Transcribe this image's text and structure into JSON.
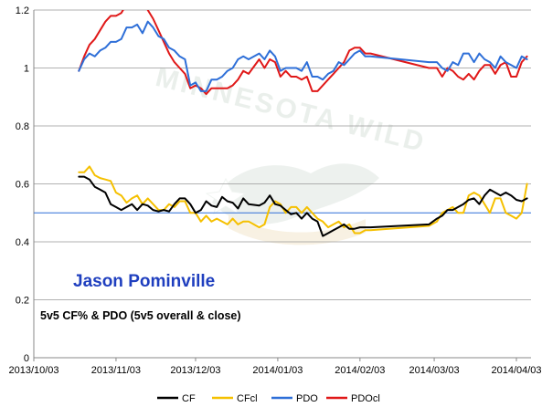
{
  "chart_data": {
    "type": "line",
    "title": "Jason Pominville",
    "subtitle": "5v5 CF% & PDO (5v5 overall & close)",
    "watermark": "MINNESOTA WILD",
    "xlabel": "",
    "ylabel": "",
    "ylim": [
      0,
      1.2
    ],
    "yticks": [
      "0",
      "0.2",
      "0.4",
      "0.6",
      "0.8",
      "1",
      "1.2"
    ],
    "xlim": [
      "2013-10-03",
      "2014-04-03"
    ],
    "xticks": [
      "2013/10/03",
      "2013/11/03",
      "2013/12/03",
      "2014/01/03",
      "2014/02/03",
      "2014/03/03",
      "2014/04/03"
    ],
    "grid": "horizontal",
    "legend_position": "bottom",
    "reference_line": {
      "y": 0.5,
      "color": "#2e6fd8"
    },
    "series": [
      {
        "name": "CF",
        "color": "#000000",
        "x": [
          "2013-10-20",
          "2013-10-22",
          "2013-10-24",
          "2013-10-26",
          "2013-10-28",
          "2013-10-30",
          "2013-11-01",
          "2013-11-03",
          "2013-11-05",
          "2013-11-07",
          "2013-11-09",
          "2013-11-11",
          "2013-11-13",
          "2013-11-15",
          "2013-11-17",
          "2013-11-19",
          "2013-11-21",
          "2013-11-23",
          "2013-11-25",
          "2013-11-27",
          "2013-11-29",
          "2013-12-01",
          "2013-12-03",
          "2013-12-05",
          "2013-12-07",
          "2013-12-09",
          "2013-12-11",
          "2013-12-13",
          "2013-12-15",
          "2013-12-17",
          "2013-12-19",
          "2013-12-21",
          "2013-12-23",
          "2013-12-27",
          "2013-12-29",
          "2013-12-31",
          "2014-01-02",
          "2014-01-04",
          "2014-01-06",
          "2014-01-08",
          "2014-01-10",
          "2014-01-12",
          "2014-01-14",
          "2014-01-16",
          "2014-01-18",
          "2014-01-20",
          "2014-01-22",
          "2014-01-24",
          "2014-01-26",
          "2014-01-28",
          "2014-01-30",
          "2014-02-01",
          "2014-02-03",
          "2014-02-05",
          "2014-02-07",
          "2014-03-01",
          "2014-03-04",
          "2014-03-06",
          "2014-03-08",
          "2014-03-10",
          "2014-03-12",
          "2014-03-14",
          "2014-03-16",
          "2014-03-18",
          "2014-03-20",
          "2014-03-22",
          "2014-03-24",
          "2014-03-26",
          "2014-03-28",
          "2014-03-30",
          "2014-04-01",
          "2014-04-03",
          "2014-04-05",
          "2014-04-07"
        ],
        "values": [
          0.625,
          0.625,
          0.615,
          0.59,
          0.58,
          0.57,
          0.53,
          0.52,
          0.51,
          0.52,
          0.53,
          0.51,
          0.53,
          0.525,
          0.51,
          0.505,
          0.51,
          0.505,
          0.53,
          0.55,
          0.55,
          0.53,
          0.5,
          0.51,
          0.54,
          0.525,
          0.52,
          0.555,
          0.54,
          0.535,
          0.515,
          0.55,
          0.53,
          0.525,
          0.535,
          0.56,
          0.53,
          0.525,
          0.51,
          0.495,
          0.5,
          0.48,
          0.5,
          0.48,
          0.47,
          0.42,
          0.43,
          0.44,
          0.45,
          0.46,
          0.445,
          0.445,
          0.45,
          0.45,
          0.45,
          0.46,
          0.48,
          0.49,
          0.51,
          0.51,
          0.52,
          0.53,
          0.545,
          0.55,
          0.53,
          0.56,
          0.58,
          0.57,
          0.56,
          0.57,
          0.56,
          0.545,
          0.54,
          0.55
        ]
      },
      {
        "name": "CFcl",
        "color": "#f5c000",
        "x": [
          "2013-10-20",
          "2013-10-22",
          "2013-10-24",
          "2013-10-26",
          "2013-10-28",
          "2013-10-30",
          "2013-11-01",
          "2013-11-03",
          "2013-11-05",
          "2013-11-07",
          "2013-11-09",
          "2013-11-11",
          "2013-11-13",
          "2013-11-15",
          "2013-11-17",
          "2013-11-19",
          "2013-11-21",
          "2013-11-23",
          "2013-11-25",
          "2013-11-27",
          "2013-11-29",
          "2013-12-01",
          "2013-12-03",
          "2013-12-05",
          "2013-12-07",
          "2013-12-09",
          "2013-12-11",
          "2013-12-13",
          "2013-12-15",
          "2013-12-17",
          "2013-12-19",
          "2013-12-21",
          "2013-12-23",
          "2013-12-27",
          "2013-12-29",
          "2013-12-31",
          "2014-01-02",
          "2014-01-04",
          "2014-01-06",
          "2014-01-08",
          "2014-01-10",
          "2014-01-12",
          "2014-01-14",
          "2014-01-16",
          "2014-01-18",
          "2014-01-20",
          "2014-01-22",
          "2014-01-24",
          "2014-01-26",
          "2014-01-28",
          "2014-01-30",
          "2014-02-01",
          "2014-02-03",
          "2014-02-05",
          "2014-02-07",
          "2014-03-01",
          "2014-03-04",
          "2014-03-06",
          "2014-03-08",
          "2014-03-10",
          "2014-03-12",
          "2014-03-14",
          "2014-03-16",
          "2014-03-18",
          "2014-03-20",
          "2014-03-22",
          "2014-03-24",
          "2014-03-26",
          "2014-03-28",
          "2014-03-30",
          "2014-04-01",
          "2014-04-03",
          "2014-04-05",
          "2014-04-07"
        ],
        "values": [
          0.64,
          0.64,
          0.66,
          0.63,
          0.62,
          0.615,
          0.61,
          0.57,
          0.56,
          0.535,
          0.55,
          0.56,
          0.53,
          0.55,
          0.53,
          0.51,
          0.51,
          0.53,
          0.52,
          0.54,
          0.54,
          0.5,
          0.5,
          0.47,
          0.49,
          0.47,
          0.48,
          0.47,
          0.46,
          0.48,
          0.46,
          0.47,
          0.47,
          0.45,
          0.46,
          0.52,
          0.54,
          0.53,
          0.5,
          0.52,
          0.52,
          0.5,
          0.52,
          0.5,
          0.48,
          0.47,
          0.45,
          0.46,
          0.47,
          0.45,
          0.46,
          0.43,
          0.43,
          0.44,
          0.44,
          0.455,
          0.47,
          0.5,
          0.51,
          0.52,
          0.5,
          0.5,
          0.56,
          0.57,
          0.56,
          0.53,
          0.5,
          0.55,
          0.55,
          0.5,
          0.49,
          0.48,
          0.5,
          0.6
        ]
      },
      {
        "name": "PDO",
        "color": "#2e6fd8",
        "x": [
          "2013-10-20",
          "2013-10-22",
          "2013-10-24",
          "2013-10-26",
          "2013-10-28",
          "2013-10-30",
          "2013-11-01",
          "2013-11-03",
          "2013-11-05",
          "2013-11-07",
          "2013-11-09",
          "2013-11-11",
          "2013-11-13",
          "2013-11-15",
          "2013-11-17",
          "2013-11-19",
          "2013-11-21",
          "2013-11-23",
          "2013-11-25",
          "2013-11-27",
          "2013-11-29",
          "2013-12-01",
          "2013-12-03",
          "2013-12-05",
          "2013-12-07",
          "2013-12-09",
          "2013-12-11",
          "2013-12-13",
          "2013-12-15",
          "2013-12-17",
          "2013-12-19",
          "2013-12-21",
          "2013-12-23",
          "2013-12-27",
          "2013-12-29",
          "2013-12-31",
          "2014-01-02",
          "2014-01-04",
          "2014-01-06",
          "2014-01-08",
          "2014-01-10",
          "2014-01-12",
          "2014-01-14",
          "2014-01-16",
          "2014-01-18",
          "2014-01-20",
          "2014-01-22",
          "2014-01-24",
          "2014-01-26",
          "2014-01-28",
          "2014-01-30",
          "2014-02-01",
          "2014-02-03",
          "2014-02-05",
          "2014-02-07",
          "2014-03-01",
          "2014-03-04",
          "2014-03-06",
          "2014-03-08",
          "2014-03-10",
          "2014-03-12",
          "2014-03-14",
          "2014-03-16",
          "2014-03-18",
          "2014-03-20",
          "2014-03-22",
          "2014-03-24",
          "2014-03-26",
          "2014-03-28",
          "2014-03-30",
          "2014-04-01",
          "2014-04-03",
          "2014-04-05",
          "2014-04-07"
        ],
        "values": [
          0.99,
          1.03,
          1.05,
          1.04,
          1.06,
          1.07,
          1.09,
          1.09,
          1.1,
          1.14,
          1.14,
          1.15,
          1.12,
          1.16,
          1.14,
          1.11,
          1.1,
          1.07,
          1.06,
          1.04,
          1.03,
          0.94,
          0.95,
          0.92,
          0.92,
          0.96,
          0.96,
          0.97,
          0.99,
          1.0,
          1.03,
          1.04,
          1.03,
          1.05,
          1.03,
          1.06,
          1.04,
          0.99,
          1.0,
          1.0,
          1.0,
          0.99,
          1.02,
          0.97,
          0.97,
          0.96,
          0.98,
          0.99,
          1.02,
          1.01,
          1.03,
          1.05,
          1.06,
          1.04,
          1.04,
          1.02,
          1.02,
          1.0,
          0.99,
          1.02,
          1.01,
          1.05,
          1.05,
          1.02,
          1.05,
          1.03,
          1.02,
          1.0,
          1.04,
          1.02,
          1.01,
          1.0,
          1.04,
          1.03
        ]
      },
      {
        "name": "PDOcl",
        "color": "#e01818",
        "x": [
          "2013-10-20",
          "2013-10-22",
          "2013-10-24",
          "2013-10-26",
          "2013-10-28",
          "2013-10-30",
          "2013-11-01",
          "2013-11-03",
          "2013-11-05",
          "2013-11-07",
          "2013-11-09",
          "2013-11-11",
          "2013-11-13",
          "2013-11-15",
          "2013-11-17",
          "2013-11-19",
          "2013-11-21",
          "2013-11-23",
          "2013-11-25",
          "2013-11-27",
          "2013-11-29",
          "2013-12-01",
          "2013-12-03",
          "2013-12-05",
          "2013-12-07",
          "2013-12-09",
          "2013-12-11",
          "2013-12-13",
          "2013-12-15",
          "2013-12-17",
          "2013-12-19",
          "2013-12-21",
          "2013-12-23",
          "2013-12-27",
          "2013-12-29",
          "2013-12-31",
          "2014-01-02",
          "2014-01-04",
          "2014-01-06",
          "2014-01-08",
          "2014-01-10",
          "2014-01-12",
          "2014-01-14",
          "2014-01-16",
          "2014-01-18",
          "2014-01-20",
          "2014-01-22",
          "2014-01-24",
          "2014-01-26",
          "2014-01-28",
          "2014-01-30",
          "2014-02-01",
          "2014-02-03",
          "2014-02-05",
          "2014-02-07",
          "2014-03-01",
          "2014-03-04",
          "2014-03-06",
          "2014-03-08",
          "2014-03-10",
          "2014-03-12",
          "2014-03-14",
          "2014-03-16",
          "2014-03-18",
          "2014-03-20",
          "2014-03-22",
          "2014-03-24",
          "2014-03-26",
          "2014-03-28",
          "2014-03-30",
          "2014-04-01",
          "2014-04-03",
          "2014-04-05",
          "2014-04-07"
        ],
        "values": [
          0.99,
          1.04,
          1.08,
          1.1,
          1.13,
          1.16,
          1.18,
          1.18,
          1.19,
          1.22,
          1.25,
          1.28,
          1.24,
          1.2,
          1.17,
          1.13,
          1.09,
          1.05,
          1.02,
          1.0,
          0.98,
          0.93,
          0.94,
          0.93,
          0.91,
          0.93,
          0.93,
          0.93,
          0.93,
          0.94,
          0.96,
          0.99,
          0.98,
          1.03,
          1.0,
          1.03,
          1.02,
          0.97,
          0.99,
          0.97,
          0.97,
          0.96,
          0.97,
          0.92,
          0.92,
          0.94,
          0.96,
          0.98,
          1.0,
          1.02,
          1.06,
          1.07,
          1.07,
          1.05,
          1.05,
          1.0,
          1.0,
          0.97,
          1.0,
          0.99,
          0.97,
          0.96,
          0.98,
          0.96,
          0.99,
          1.01,
          1.01,
          0.98,
          1.01,
          1.02,
          0.97,
          0.97,
          1.02,
          1.04
        ]
      }
    ]
  }
}
